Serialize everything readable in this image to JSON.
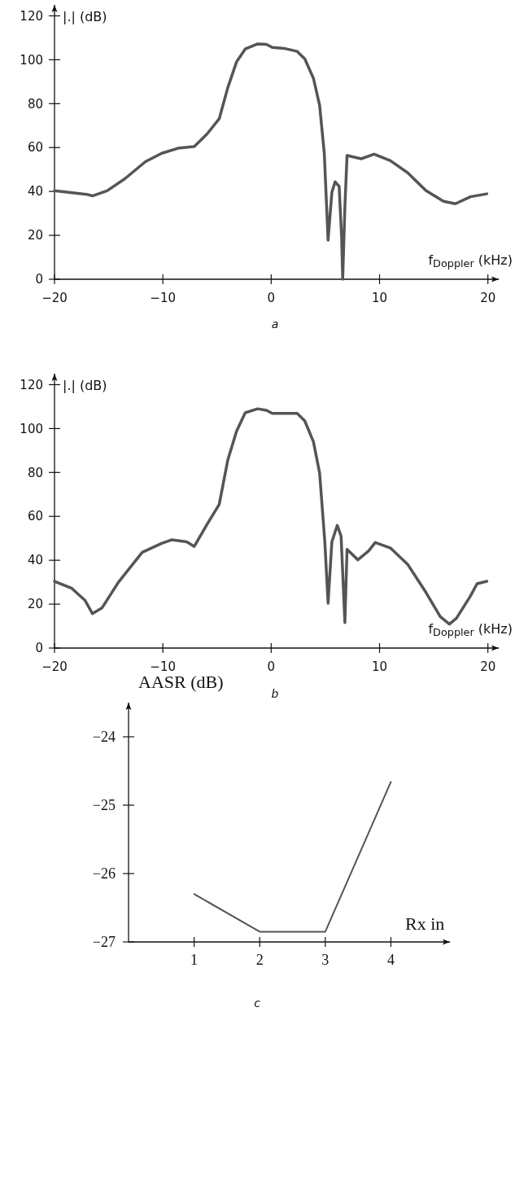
{
  "chart_data": [
    {
      "type": "line",
      "xlabel": "f$_{Doppler}$(kHz)",
      "ylabel": "|.| (dB)",
      "annotations": [
        "a"
      ],
      "xlim": [
        -20,
        21
      ],
      "ylim": [
        0,
        125
      ],
      "xticks": [
        -20,
        -10,
        0,
        10,
        20
      ],
      "yticks": [
        0,
        20,
        40,
        60,
        80,
        100,
        120
      ],
      "marker": "none",
      "line_style": "solid",
      "series": [
        {
          "color": "#555555",
          "x": [
            -20,
            -17.06,
            -16.5,
            -15.15,
            -13.5,
            -11.6,
            -10.1,
            -8.6,
            -7.1,
            -5.9,
            -4.8,
            -4.0,
            -3.2,
            -2.4,
            -1.25,
            -0.44,
            0.1,
            1.2,
            2.4,
            3.1,
            3.9,
            4.47,
            4.9,
            5.25,
            5.6,
            5.9,
            6.27,
            6.5,
            6.6,
            6.8,
            7.0,
            8.3,
            9.5,
            11.0,
            12.6,
            14.3,
            15.9,
            17.0,
            18.4,
            19.9
          ],
          "values": [
            40.3,
            38.7,
            38,
            40.3,
            45.8,
            53.6,
            57.4,
            59.7,
            60.5,
            66.3,
            73.1,
            87.4,
            99,
            104.9,
            107.2,
            107,
            105.6,
            105.2,
            103.8,
            100.4,
            91.5,
            79.2,
            57.4,
            17.8,
            39.6,
            44.4,
            42.3,
            19.1,
            0,
            32.8,
            56.4,
            54.9,
            57,
            54,
            48.5,
            40.3,
            35.5,
            34.4,
            37.6,
            38.9
          ]
        }
      ]
    },
    {
      "type": "line",
      "xlabel": "f$_{Doppler}$(kHz)",
      "ylabel": "|.| (dB)",
      "annotations": [
        "b"
      ],
      "xlim": [
        -20,
        21
      ],
      "ylim": [
        0,
        125
      ],
      "xticks": [
        -20,
        -10,
        0,
        10,
        20
      ],
      "yticks": [
        0,
        20,
        40,
        60,
        80,
        100,
        120
      ],
      "marker": "none",
      "line_style": "solid",
      "series": [
        {
          "color": "#555555",
          "x": [
            -20,
            -18.4,
            -17.2,
            -16.5,
            -15.6,
            -14.1,
            -11.9,
            -10.1,
            -9.2,
            -7.8,
            -7.1,
            -5.9,
            -4.8,
            -4.0,
            -3.2,
            -2.4,
            -1.25,
            -0.44,
            0.1,
            1.2,
            2.4,
            3.1,
            3.9,
            4.47,
            4.95,
            5.25,
            5.6,
            6.1,
            6.45,
            6.8,
            7.0,
            8.0,
            9.0,
            9.6,
            11.0,
            12.6,
            14.3,
            15.6,
            16.45,
            17.1,
            18.4,
            19.0,
            19.9
          ],
          "values": [
            30.4,
            27.2,
            21.8,
            15.7,
            18.4,
            30,
            43.6,
            47.7,
            49.3,
            48.4,
            46.3,
            56.5,
            65.4,
            85.8,
            98.8,
            107.2,
            109,
            108.3,
            106.9,
            106.9,
            106.9,
            103.5,
            94,
            79.7,
            48.4,
            20.4,
            48.4,
            55.9,
            51,
            11.6,
            45,
            40.2,
            44.3,
            48.1,
            45.6,
            38.1,
            25.2,
            14.3,
            10.9,
            13.6,
            23.8,
            29.3,
            30.4
          ]
        }
      ]
    },
    {
      "type": "line",
      "xlabel": "Rx in",
      "ylabel": "AASR (dB)",
      "annotations": [
        "c"
      ],
      "xlim": [
        0,
        4.9
      ],
      "ylim": [
        -27,
        -23.5
      ],
      "xticks": [
        1,
        2,
        3,
        4
      ],
      "yticks": [
        {
          "value": -27,
          "label": "−27"
        },
        {
          "value": -26,
          "label": "−26"
        },
        {
          "value": -25,
          "label": "−25"
        },
        {
          "value": -24,
          "label": "−24"
        }
      ],
      "marker": "none",
      "line_style": "solid",
      "series": [
        {
          "color": "#555555",
          "x": [
            1,
            2,
            3,
            4
          ],
          "values": [
            -26.3,
            -26.85,
            -26.85,
            -24.66
          ]
        }
      ]
    }
  ]
}
